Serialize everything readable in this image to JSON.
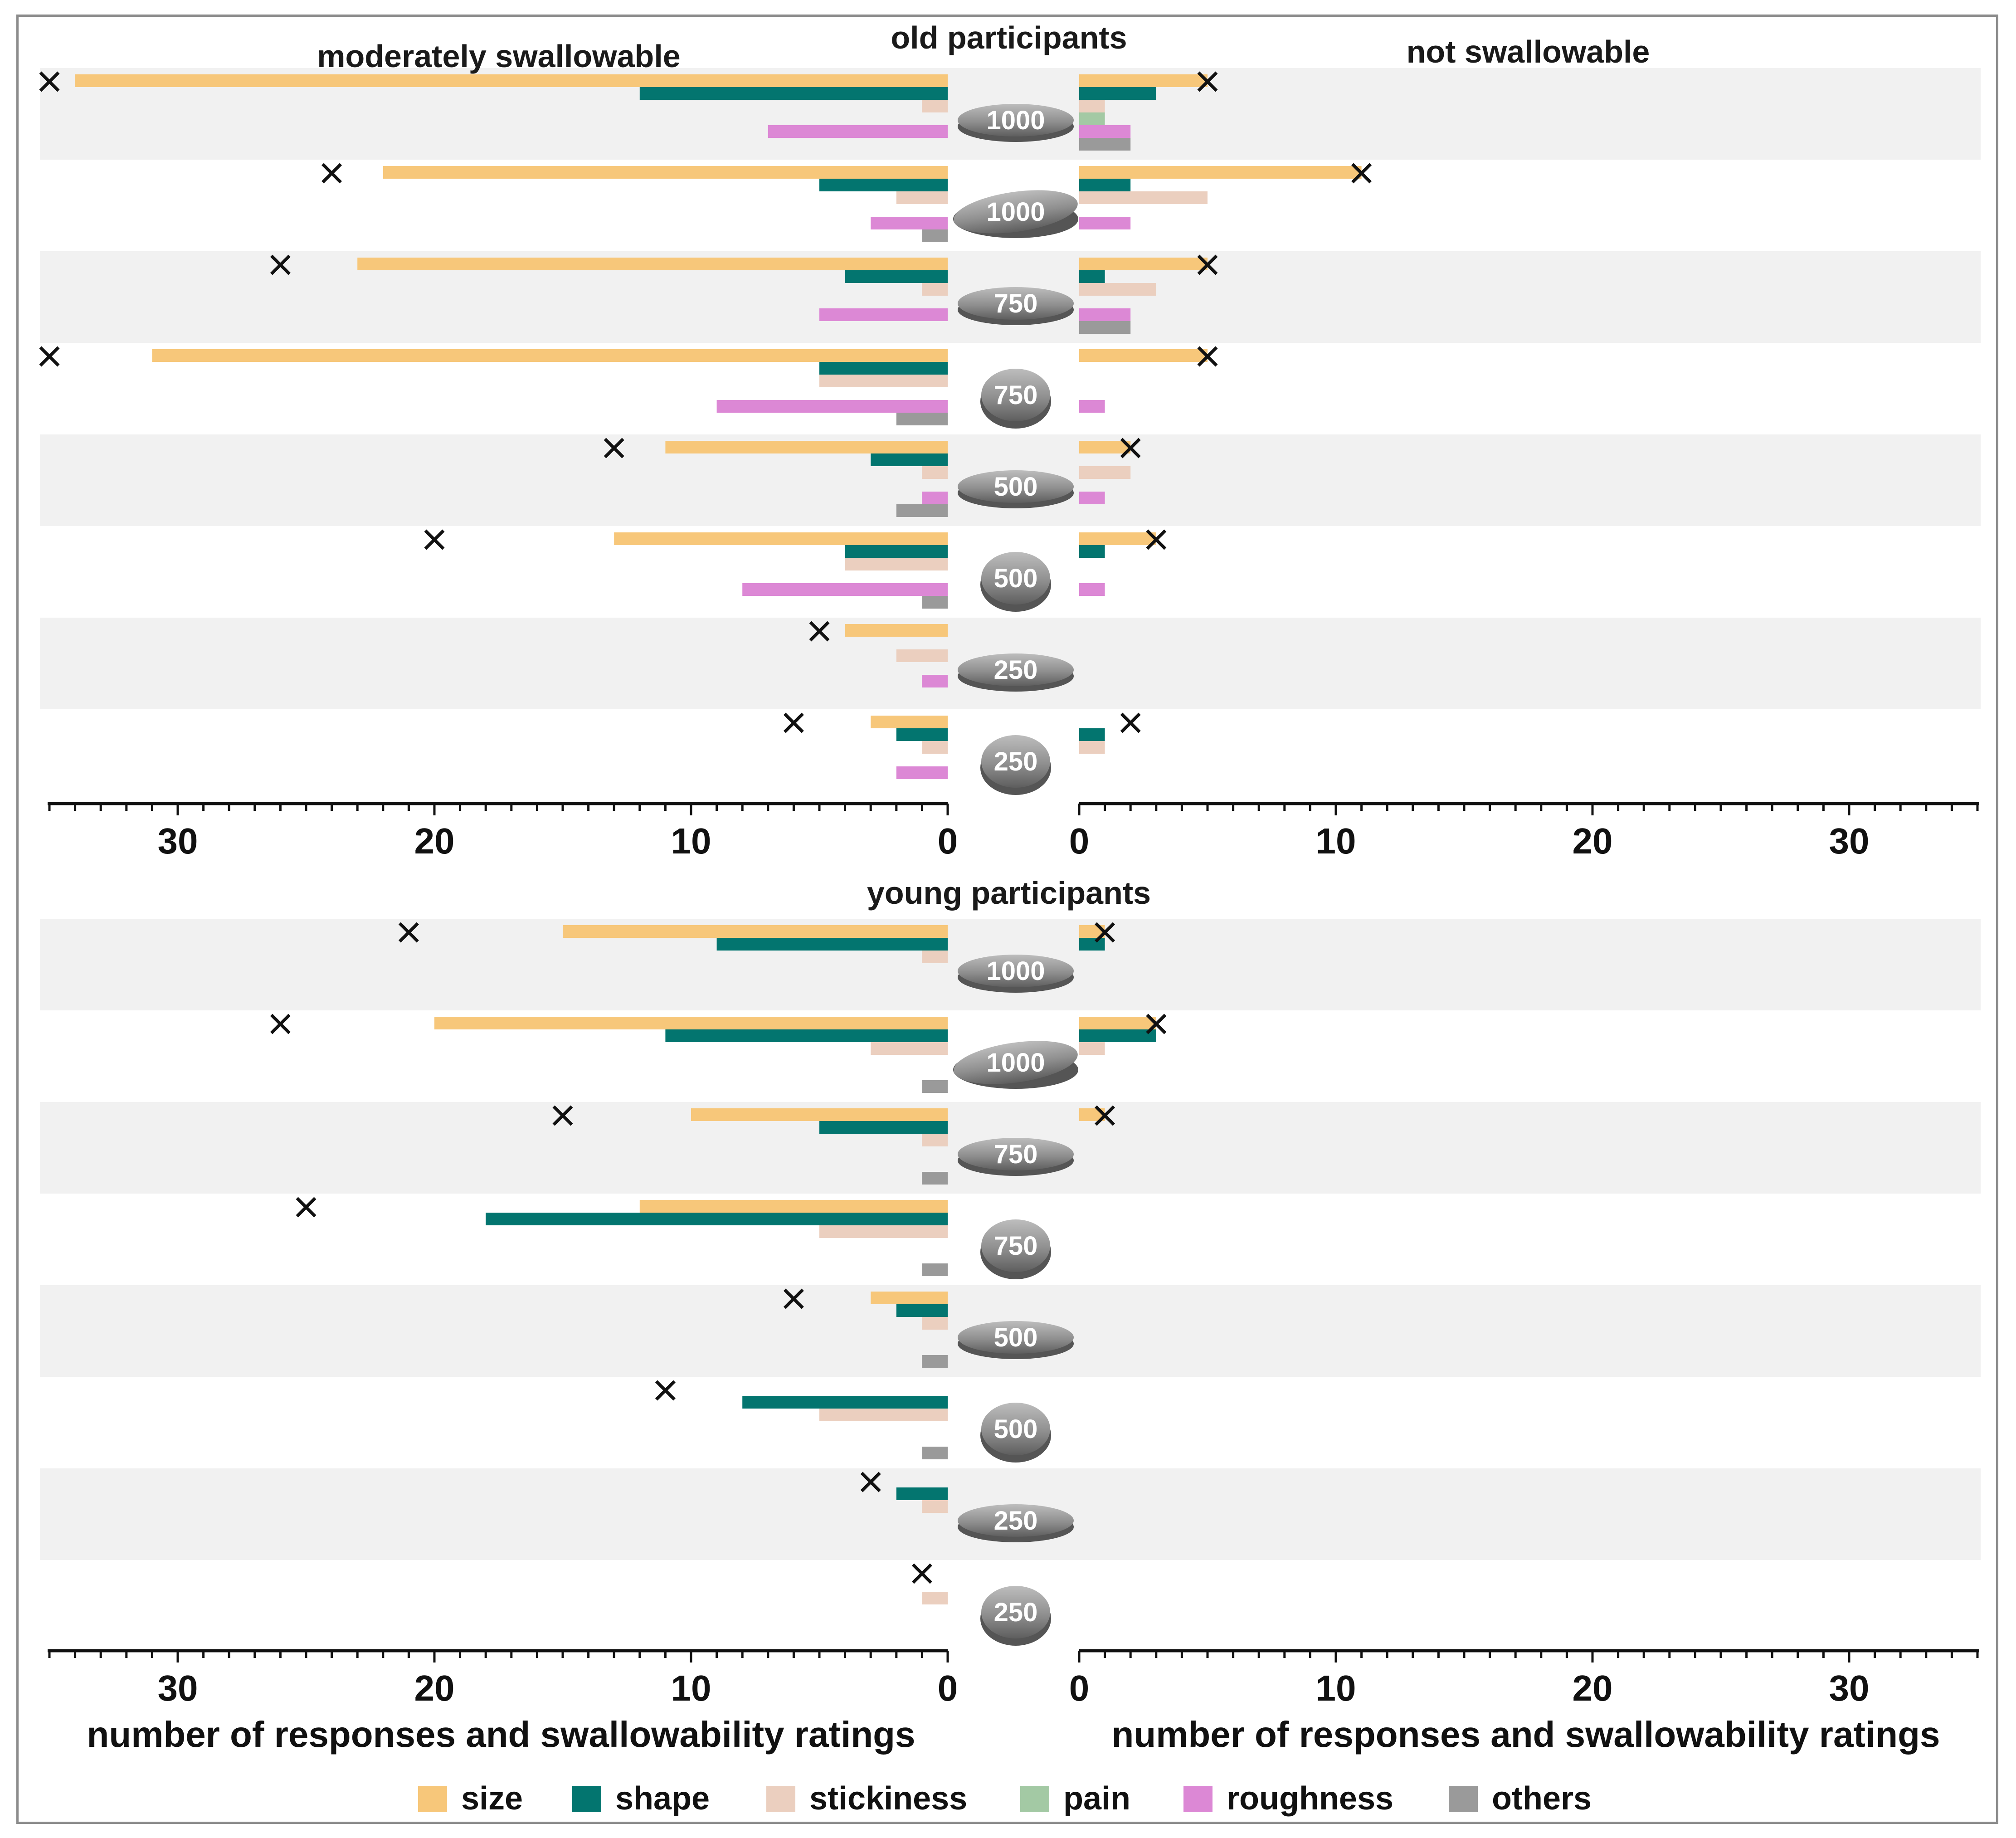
{
  "chart_data": {
    "type": "bar",
    "legend": [
      {
        "name": "size",
        "color": "#F7C77A"
      },
      {
        "name": "shape",
        "color": "#03756F"
      },
      {
        "name": "stickiness",
        "color": "#EBCFBF"
      },
      {
        "name": "pain",
        "color": "#A3C9A4"
      },
      {
        "name": "roughness",
        "color": "#DC88D5"
      },
      {
        "name": "others",
        "color": "#9A9A9A"
      }
    ],
    "x_range": [
      0,
      35
    ],
    "x_ticks": [
      30,
      20,
      10,
      0
    ],
    "x_ticks_right": [
      0,
      10,
      20,
      30
    ],
    "left_title": "moderately swallowable",
    "right_title": "not swallowable",
    "xlabel": "number of responses and swallowability ratings",
    "panels": [
      {
        "title": "old participants",
        "rows": [
          {
            "tablet": "1000",
            "shape": "oblong",
            "left": [
              34,
              12,
              1,
              0,
              7,
              0
            ],
            "right": [
              5,
              3,
              1,
              1,
              2,
              2
            ],
            "rating_left": 35,
            "rating_right": 5
          },
          {
            "tablet": "1000",
            "shape": "oval",
            "left": [
              22,
              5,
              2,
              0,
              3,
              1
            ],
            "right": [
              11,
              2,
              5,
              0,
              2,
              0
            ],
            "rating_left": 24,
            "rating_right": 11
          },
          {
            "tablet": "750",
            "shape": "oblong",
            "left": [
              23,
              4,
              1,
              0,
              5,
              0
            ],
            "right": [
              5,
              1,
              3,
              0,
              2,
              2
            ],
            "rating_left": 26,
            "rating_right": 5
          },
          {
            "tablet": "750",
            "shape": "round",
            "left": [
              31,
              5,
              5,
              0,
              9,
              2
            ],
            "right": [
              5,
              0,
              0,
              0,
              1,
              0
            ],
            "rating_left": 35,
            "rating_right": 5
          },
          {
            "tablet": "500",
            "shape": "oblong",
            "left": [
              11,
              3,
              1,
              0,
              1,
              2
            ],
            "right": [
              2,
              0,
              2,
              0,
              1,
              0
            ],
            "rating_left": 13,
            "rating_right": 2
          },
          {
            "tablet": "500",
            "shape": "round",
            "left": [
              13,
              4,
              4,
              0,
              8,
              1
            ],
            "right": [
              3,
              1,
              0,
              0,
              1,
              0
            ],
            "rating_left": 20,
            "rating_right": 3
          },
          {
            "tablet": "250",
            "shape": "oblong",
            "left": [
              4,
              0,
              2,
              0,
              1,
              0
            ],
            "right": [
              0,
              0,
              0,
              0,
              0,
              0
            ],
            "rating_left": 5,
            "rating_right": 0
          },
          {
            "tablet": "250",
            "shape": "round",
            "left": [
              3,
              2,
              1,
              0,
              2,
              0
            ],
            "right": [
              0,
              1,
              1,
              0,
              0,
              0
            ],
            "rating_left": 6,
            "rating_right": 2
          }
        ]
      },
      {
        "title": "young participants",
        "rows": [
          {
            "tablet": "1000",
            "shape": "oblong",
            "left": [
              15,
              9,
              1,
              0,
              0,
              0
            ],
            "right": [
              1,
              1,
              0,
              0,
              0,
              0
            ],
            "rating_left": 21,
            "rating_right": 1
          },
          {
            "tablet": "1000",
            "shape": "oval",
            "left": [
              20,
              11,
              3,
              0,
              0,
              1
            ],
            "right": [
              3,
              3,
              1,
              0,
              0,
              0
            ],
            "rating_left": 26,
            "rating_right": 3
          },
          {
            "tablet": "750",
            "shape": "oblong",
            "left": [
              10,
              5,
              1,
              0,
              0,
              1
            ],
            "right": [
              1,
              0,
              0,
              0,
              0,
              0
            ],
            "rating_left": 15,
            "rating_right": 1
          },
          {
            "tablet": "750",
            "shape": "round",
            "left": [
              12,
              18,
              5,
              0,
              0,
              1
            ],
            "right": [
              0,
              0,
              0,
              0,
              0,
              0
            ],
            "rating_left": 25,
            "rating_right": 0
          },
          {
            "tablet": "500",
            "shape": "oblong",
            "left": [
              3,
              2,
              1,
              0,
              0,
              1
            ],
            "right": [
              0,
              0,
              0,
              0,
              0,
              0
            ],
            "rating_left": 6,
            "rating_right": 0
          },
          {
            "tablet": "500",
            "shape": "round",
            "left": [
              0,
              8,
              5,
              0,
              0,
              1
            ],
            "right": [
              0,
              0,
              0,
              0,
              0,
              0
            ],
            "rating_left": 11,
            "rating_right": 0
          },
          {
            "tablet": "250",
            "shape": "oblong",
            "left": [
              0,
              2,
              1,
              0,
              0,
              0
            ],
            "right": [
              0,
              0,
              0,
              0,
              0,
              0
            ],
            "rating_left": 3,
            "rating_right": 0
          },
          {
            "tablet": "250",
            "shape": "round",
            "left": [
              0,
              0,
              1,
              0,
              0,
              0
            ],
            "right": [
              0,
              0,
              0,
              0,
              0,
              0
            ],
            "rating_left": 1,
            "rating_right": 0
          }
        ]
      }
    ]
  }
}
